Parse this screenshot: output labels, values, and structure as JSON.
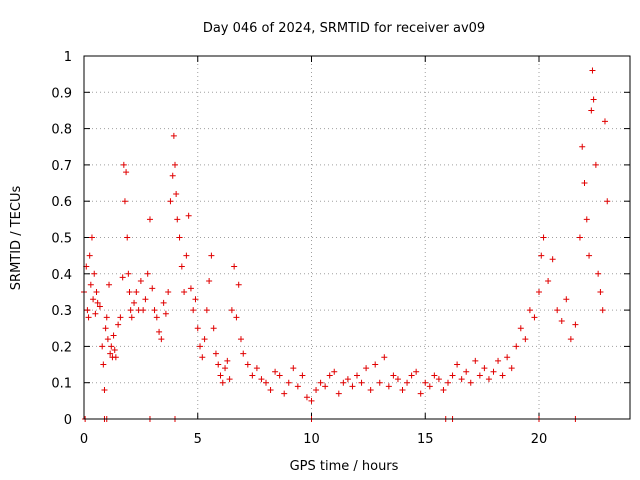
{
  "chart_data": {
    "type": "scatter",
    "title": "Day 046 of 2024, SRMTID for receiver av09",
    "xlabel": "GPS time / hours",
    "ylabel": "SRMTID / TECUs",
    "xlim": [
      0,
      24
    ],
    "ylim": [
      0,
      1
    ],
    "xticks": [
      0,
      5,
      10,
      15,
      20
    ],
    "xtick_labels": [
      "0",
      "5",
      "10",
      "15",
      "20"
    ],
    "yticks": [
      0,
      0.1,
      0.2,
      0.3,
      0.4,
      0.5,
      0.6,
      0.7,
      0.8,
      0.9,
      1
    ],
    "ytick_labels": [
      "0",
      "0.1",
      "0.2",
      "0.3",
      "0.4",
      "0.5",
      "0.6",
      "0.7",
      "0.8",
      "0.9",
      "1"
    ],
    "grid": true,
    "marker": "plus",
    "color": "#e00000",
    "series": [
      {
        "name": "av09",
        "points": [
          [
            0.0,
            0.35
          ],
          [
            0.1,
            0.42
          ],
          [
            0.15,
            0.3
          ],
          [
            0.2,
            0.28
          ],
          [
            0.25,
            0.45
          ],
          [
            0.3,
            0.37
          ],
          [
            0.35,
            0.5
          ],
          [
            0.4,
            0.33
          ],
          [
            0.45,
            0.4
          ],
          [
            0.5,
            0.29
          ],
          [
            0.55,
            0.35
          ],
          [
            0.6,
            0.32
          ],
          [
            0.7,
            0.31
          ],
          [
            0.8,
            0.2
          ],
          [
            0.85,
            0.15
          ],
          [
            0.9,
            0.08
          ],
          [
            0.95,
            0.25
          ],
          [
            1.0,
            0.28
          ],
          [
            1.05,
            0.22
          ],
          [
            1.1,
            0.37
          ],
          [
            1.15,
            0.18
          ],
          [
            1.2,
            0.2
          ],
          [
            1.25,
            0.17
          ],
          [
            1.3,
            0.23
          ],
          [
            1.35,
            0.19
          ],
          [
            1.4,
            0.17
          ],
          [
            1.5,
            0.26
          ],
          [
            1.6,
            0.28
          ],
          [
            1.7,
            0.39
          ],
          [
            1.75,
            0.7
          ],
          [
            1.8,
            0.6
          ],
          [
            1.85,
            0.68
          ],
          [
            1.9,
            0.5
          ],
          [
            1.95,
            0.4
          ],
          [
            2.0,
            0.35
          ],
          [
            2.05,
            0.3
          ],
          [
            2.1,
            0.28
          ],
          [
            2.2,
            0.32
          ],
          [
            2.3,
            0.35
          ],
          [
            2.4,
            0.3
          ],
          [
            2.5,
            0.38
          ],
          [
            2.6,
            0.3
          ],
          [
            2.7,
            0.33
          ],
          [
            2.8,
            0.4
          ],
          [
            2.9,
            0.55
          ],
          [
            3.0,
            0.36
          ],
          [
            3.1,
            0.3
          ],
          [
            3.2,
            0.28
          ],
          [
            3.3,
            0.24
          ],
          [
            3.4,
            0.22
          ],
          [
            3.5,
            0.32
          ],
          [
            3.6,
            0.29
          ],
          [
            3.7,
            0.35
          ],
          [
            3.8,
            0.6
          ],
          [
            3.9,
            0.67
          ],
          [
            3.95,
            0.78
          ],
          [
            4.0,
            0.7
          ],
          [
            4.05,
            0.62
          ],
          [
            4.1,
            0.55
          ],
          [
            4.2,
            0.5
          ],
          [
            4.3,
            0.42
          ],
          [
            4.4,
            0.35
          ],
          [
            4.5,
            0.45
          ],
          [
            4.6,
            0.56
          ],
          [
            4.7,
            0.36
          ],
          [
            4.8,
            0.3
          ],
          [
            4.9,
            0.33
          ],
          [
            5.0,
            0.25
          ],
          [
            5.1,
            0.2
          ],
          [
            5.2,
            0.17
          ],
          [
            5.3,
            0.22
          ],
          [
            5.4,
            0.3
          ],
          [
            5.5,
            0.38
          ],
          [
            5.6,
            0.45
          ],
          [
            5.7,
            0.25
          ],
          [
            5.8,
            0.18
          ],
          [
            5.9,
            0.15
          ],
          [
            6.0,
            0.12
          ],
          [
            6.1,
            0.1
          ],
          [
            6.2,
            0.14
          ],
          [
            6.3,
            0.16
          ],
          [
            6.4,
            0.11
          ],
          [
            6.5,
            0.3
          ],
          [
            6.6,
            0.42
          ],
          [
            6.7,
            0.28
          ],
          [
            6.8,
            0.37
          ],
          [
            6.9,
            0.22
          ],
          [
            7.0,
            0.18
          ],
          [
            7.2,
            0.15
          ],
          [
            7.4,
            0.12
          ],
          [
            7.6,
            0.14
          ],
          [
            7.8,
            0.11
          ],
          [
            8.0,
            0.1
          ],
          [
            8.2,
            0.08
          ],
          [
            8.4,
            0.13
          ],
          [
            8.6,
            0.12
          ],
          [
            8.8,
            0.07
          ],
          [
            9.0,
            0.1
          ],
          [
            9.2,
            0.14
          ],
          [
            9.4,
            0.09
          ],
          [
            9.6,
            0.12
          ],
          [
            9.8,
            0.06
          ],
          [
            10.0,
            0.05
          ],
          [
            10.2,
            0.08
          ],
          [
            10.4,
            0.1
          ],
          [
            10.6,
            0.09
          ],
          [
            10.8,
            0.12
          ],
          [
            11.0,
            0.13
          ],
          [
            11.2,
            0.07
          ],
          [
            11.4,
            0.1
          ],
          [
            11.6,
            0.11
          ],
          [
            11.8,
            0.09
          ],
          [
            12.0,
            0.12
          ],
          [
            12.2,
            0.1
          ],
          [
            12.4,
            0.14
          ],
          [
            12.6,
            0.08
          ],
          [
            12.8,
            0.15
          ],
          [
            13.0,
            0.1
          ],
          [
            13.2,
            0.17
          ],
          [
            13.4,
            0.09
          ],
          [
            13.6,
            0.12
          ],
          [
            13.8,
            0.11
          ],
          [
            14.0,
            0.08
          ],
          [
            14.2,
            0.1
          ],
          [
            14.4,
            0.12
          ],
          [
            14.6,
            0.13
          ],
          [
            14.8,
            0.07
          ],
          [
            15.0,
            0.1
          ],
          [
            15.2,
            0.09
          ],
          [
            15.4,
            0.12
          ],
          [
            15.6,
            0.11
          ],
          [
            15.8,
            0.08
          ],
          [
            16.0,
            0.1
          ],
          [
            16.2,
            0.12
          ],
          [
            16.4,
            0.15
          ],
          [
            16.6,
            0.11
          ],
          [
            16.8,
            0.13
          ],
          [
            17.0,
            0.1
          ],
          [
            17.2,
            0.16
          ],
          [
            17.4,
            0.12
          ],
          [
            17.6,
            0.14
          ],
          [
            17.8,
            0.11
          ],
          [
            18.0,
            0.13
          ],
          [
            18.2,
            0.16
          ],
          [
            18.4,
            0.12
          ],
          [
            18.6,
            0.17
          ],
          [
            18.8,
            0.14
          ],
          [
            19.0,
            0.2
          ],
          [
            19.2,
            0.25
          ],
          [
            19.4,
            0.22
          ],
          [
            19.6,
            0.3
          ],
          [
            19.8,
            0.28
          ],
          [
            20.0,
            0.35
          ],
          [
            20.1,
            0.45
          ],
          [
            20.2,
            0.5
          ],
          [
            20.4,
            0.38
          ],
          [
            20.6,
            0.44
          ],
          [
            20.8,
            0.3
          ],
          [
            21.0,
            0.27
          ],
          [
            21.2,
            0.33
          ],
          [
            21.4,
            0.22
          ],
          [
            21.6,
            0.26
          ],
          [
            21.8,
            0.5
          ],
          [
            21.9,
            0.75
          ],
          [
            22.0,
            0.65
          ],
          [
            22.1,
            0.55
          ],
          [
            22.2,
            0.45
          ],
          [
            22.3,
            0.85
          ],
          [
            22.35,
            0.96
          ],
          [
            22.4,
            0.88
          ],
          [
            22.5,
            0.7
          ],
          [
            22.6,
            0.4
          ],
          [
            22.7,
            0.35
          ],
          [
            22.8,
            0.3
          ],
          [
            22.9,
            0.82
          ],
          [
            23.0,
            0.6
          ],
          [
            0.05,
            0.0
          ],
          [
            0.9,
            0.0
          ],
          [
            1.0,
            0.0
          ],
          [
            2.9,
            0.0
          ],
          [
            4.0,
            0.0
          ],
          [
            10.0,
            0.0
          ],
          [
            15.9,
            0.0
          ],
          [
            16.2,
            0.0
          ],
          [
            20.0,
            0.0
          ],
          [
            21.6,
            0.0
          ]
        ]
      }
    ]
  }
}
